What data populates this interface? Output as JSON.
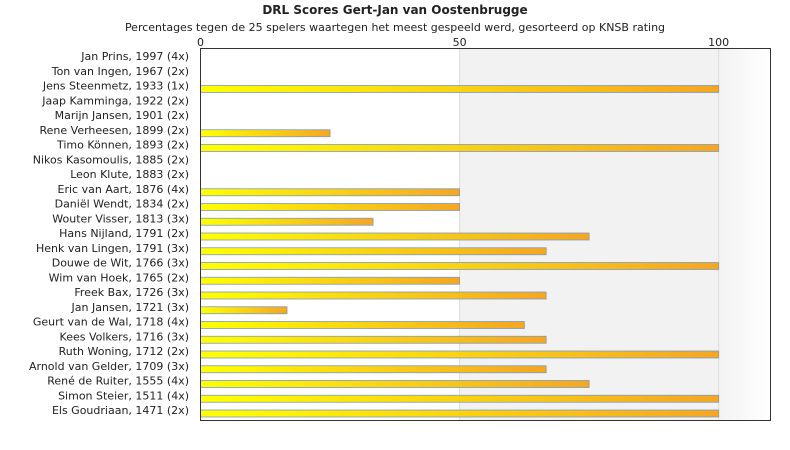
{
  "chart_data": {
    "type": "bar",
    "orientation": "horizontal",
    "title": "DRL Scores Gert-Jan van Oostenbrugge",
    "subtitle": "Percentages tegen de 25 spelers waartegen het meest gespeeld werd, gesorteerd op KNSB rating",
    "xlim": [
      0,
      110
    ],
    "xticks": [
      0,
      50,
      100
    ],
    "categories": [
      "Jan Prins, 1997 (4x)",
      "Ton van Ingen, 1967 (2x)",
      "Jens Steenmetz, 1933 (1x)",
      "Jaap Kamminga, 1922 (2x)",
      "Marijn Jansen, 1901 (2x)",
      "Rene Verheesen, 1899 (2x)",
      "Timo Können, 1893 (2x)",
      "Nikos Kasomoulis, 1885 (2x)",
      "Leon Klute, 1883 (2x)",
      "Eric van Aart, 1876 (4x)",
      "Daniël Wendt, 1834 (2x)",
      "Wouter Visser, 1813 (3x)",
      "Hans Nijland, 1791 (2x)",
      "Henk van Lingen, 1791 (3x)",
      "Douwe de Wit, 1766 (3x)",
      "Wim van Hoek, 1765 (2x)",
      "Freek Bax, 1726 (3x)",
      "Jan Jansen, 1721 (3x)",
      "Geurt van de Wal, 1718 (4x)",
      "Kees Volkers, 1716 (3x)",
      "Ruth Woning, 1712 (2x)",
      "Arnold van Gelder, 1709 (3x)",
      "René de Ruiter, 1555 (4x)",
      "Simon Steier, 1511 (4x)",
      "Els Goudriaan, 1471 (2x)"
    ],
    "values": [
      0,
      0,
      100,
      0,
      0,
      25,
      100,
      0,
      0,
      50,
      50,
      33.3,
      75,
      66.7,
      100,
      50,
      66.7,
      16.7,
      62.5,
      66.7,
      100,
      66.7,
      75,
      100,
      100
    ],
    "grid": true,
    "bar_gradient": [
      "#ffff00",
      "#f5a623"
    ],
    "bar_border": "#7a9cc6",
    "band_color": "#f2f2f2"
  }
}
